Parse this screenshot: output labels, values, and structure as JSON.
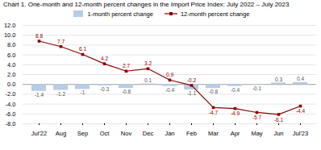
{
  "chart_data": {
    "type": "bar",
    "title": "Chart 1. One-month and 12-month percent changes in the Import Price Index: July 2022 – July 2023",
    "categories": [
      "Jul'22",
      "Aug",
      "Sep",
      "Oct",
      "Nov",
      "Dec",
      "Jan",
      "Feb",
      "Mar",
      "Apr",
      "May",
      "Jun",
      "Jul'23"
    ],
    "series": [
      {
        "name": "1-month percent change",
        "type": "bar",
        "color": "#b8cce4",
        "values": [
          -1.4,
          -1.2,
          -1.0,
          -0.3,
          -0.8,
          0.1,
          -0.4,
          -1.1,
          -0.8,
          -0.4,
          -0.1,
          0.3,
          0.4
        ]
      },
      {
        "name": "12-month percent change",
        "type": "line",
        "color": "#8B0000",
        "marker": "square",
        "values": [
          8.8,
          7.7,
          6.1,
          4.2,
          2.7,
          3.2,
          0.9,
          -0.2,
          -4.7,
          -4.9,
          -5.7,
          -6.1,
          -4.4
        ]
      }
    ],
    "ylim": [
      -8.0,
      12.0
    ],
    "yticks": [
      {
        "value": -8.0,
        "label": "-8.0"
      },
      {
        "value": -6.0,
        "label": "-6.0"
      },
      {
        "value": -4.0,
        "label": "-4.0"
      },
      {
        "value": -2.0,
        "label": "-2.0"
      },
      {
        "value": 0.0,
        "label": "0.0"
      },
      {
        "value": 2.0,
        "label": "2.0"
      },
      {
        "value": 4.0,
        "label": "4.0"
      },
      {
        "value": 6.0,
        "label": "6.0"
      },
      {
        "value": 8.0,
        "label": "8.0"
      },
      {
        "value": 10.0,
        "label": "10.0"
      },
      {
        "value": 12.0,
        "label": "12.0"
      }
    ],
    "grid": true,
    "legend": "top",
    "data_labels": true
  }
}
